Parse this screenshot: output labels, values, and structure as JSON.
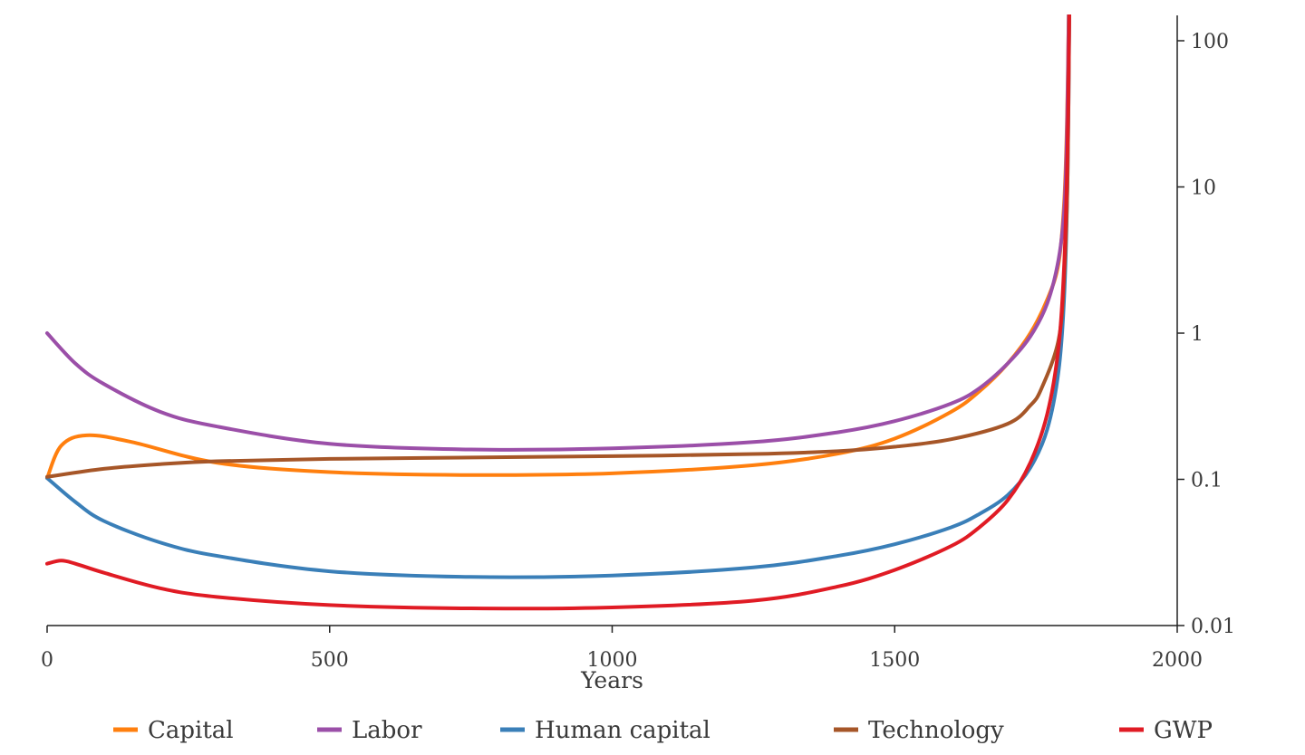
{
  "chart_data": {
    "type": "line",
    "title": "",
    "xlabel": "Years",
    "ylabel": "",
    "xlim": [
      0,
      2000
    ],
    "ylim": [
      0.01,
      150
    ],
    "yscale": "log",
    "grid": false,
    "legend_position": "bottom",
    "x_ticks": [
      {
        "value": 0,
        "label": "0"
      },
      {
        "value": 500,
        "label": "500"
      },
      {
        "value": 1000,
        "label": "1000"
      },
      {
        "value": 1500,
        "label": "1500"
      },
      {
        "value": 2000,
        "label": "2000"
      }
    ],
    "y_ticks": [
      {
        "value": 0.01,
        "label": "0.01"
      },
      {
        "value": 0.1,
        "label": "0.1"
      },
      {
        "value": 1,
        "label": "1"
      },
      {
        "value": 10,
        "label": "10"
      },
      {
        "value": 100,
        "label": "100"
      }
    ],
    "series": [
      {
        "name": "Capital",
        "color": "#ff7f0e",
        "points": [
          [
            0,
            0.102
          ],
          [
            25,
            0.17
          ],
          [
            70,
            0.2
          ],
          [
            150,
            0.18
          ],
          [
            300,
            0.13
          ],
          [
            500,
            0.112
          ],
          [
            750,
            0.107
          ],
          [
            1000,
            0.11
          ],
          [
            1250,
            0.125
          ],
          [
            1400,
            0.15
          ],
          [
            1500,
            0.19
          ],
          [
            1600,
            0.29
          ],
          [
            1650,
            0.4
          ],
          [
            1700,
            0.62
          ],
          [
            1740,
            1.0
          ],
          [
            1770,
            1.7
          ],
          [
            1790,
            3.0
          ],
          [
            1800,
            8.0
          ],
          [
            1805,
            30
          ],
          [
            1808,
            150
          ]
        ]
      },
      {
        "name": "Labor",
        "color": "#9b4fa8",
        "points": [
          [
            0,
            1.0
          ],
          [
            50,
            0.62
          ],
          [
            100,
            0.45
          ],
          [
            200,
            0.29
          ],
          [
            300,
            0.23
          ],
          [
            500,
            0.175
          ],
          [
            750,
            0.16
          ],
          [
            1000,
            0.163
          ],
          [
            1250,
            0.18
          ],
          [
            1400,
            0.21
          ],
          [
            1500,
            0.25
          ],
          [
            1600,
            0.33
          ],
          [
            1650,
            0.42
          ],
          [
            1700,
            0.62
          ],
          [
            1740,
            0.95
          ],
          [
            1770,
            1.6
          ],
          [
            1790,
            3.2
          ],
          [
            1800,
            7.0
          ],
          [
            1805,
            25
          ],
          [
            1808,
            150
          ]
        ]
      },
      {
        "name": "Human capital",
        "color": "#3a7fb8",
        "points": [
          [
            0,
            0.102
          ],
          [
            50,
            0.07
          ],
          [
            100,
            0.052
          ],
          [
            200,
            0.037
          ],
          [
            300,
            0.03
          ],
          [
            500,
            0.0235
          ],
          [
            750,
            0.0215
          ],
          [
            1000,
            0.022
          ],
          [
            1250,
            0.025
          ],
          [
            1400,
            0.03
          ],
          [
            1500,
            0.036
          ],
          [
            1600,
            0.047
          ],
          [
            1650,
            0.058
          ],
          [
            1700,
            0.078
          ],
          [
            1740,
            0.12
          ],
          [
            1770,
            0.22
          ],
          [
            1790,
            0.55
          ],
          [
            1800,
            1.8
          ],
          [
            1806,
            12
          ],
          [
            1809,
            150
          ]
        ]
      },
      {
        "name": "Technology",
        "color": "#a65628",
        "points": [
          [
            0,
            0.104
          ],
          [
            100,
            0.118
          ],
          [
            200,
            0.127
          ],
          [
            300,
            0.133
          ],
          [
            500,
            0.138
          ],
          [
            750,
            0.141
          ],
          [
            1000,
            0.144
          ],
          [
            1250,
            0.149
          ],
          [
            1400,
            0.156
          ],
          [
            1500,
            0.167
          ],
          [
            1600,
            0.188
          ],
          [
            1700,
            0.24
          ],
          [
            1740,
            0.32
          ],
          [
            1760,
            0.42
          ],
          [
            1790,
            0.9
          ],
          [
            1800,
            2.5
          ],
          [
            1806,
            12
          ],
          [
            1809,
            150
          ]
        ]
      },
      {
        "name": "GWP",
        "color": "#e01b24",
        "points": [
          [
            0,
            0.0265
          ],
          [
            25,
            0.0278
          ],
          [
            50,
            0.0265
          ],
          [
            100,
            0.023
          ],
          [
            200,
            0.018
          ],
          [
            300,
            0.0157
          ],
          [
            500,
            0.0138
          ],
          [
            750,
            0.0131
          ],
          [
            1000,
            0.0133
          ],
          [
            1250,
            0.0148
          ],
          [
            1400,
            0.0185
          ],
          [
            1500,
            0.024
          ],
          [
            1600,
            0.035
          ],
          [
            1650,
            0.047
          ],
          [
            1700,
            0.072
          ],
          [
            1740,
            0.13
          ],
          [
            1770,
            0.28
          ],
          [
            1790,
            0.8
          ],
          [
            1800,
            3.0
          ],
          [
            1806,
            20
          ],
          [
            1809,
            150
          ]
        ]
      }
    ]
  }
}
